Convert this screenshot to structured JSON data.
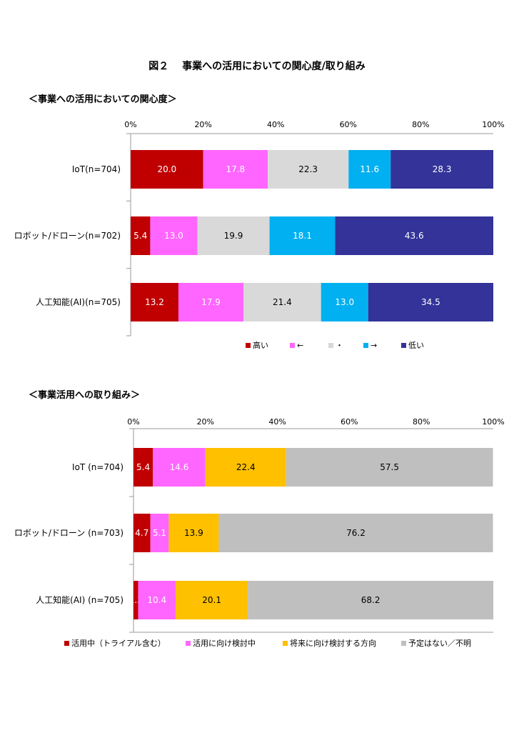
{
  "page": {
    "title": "図２　 事業への活用においての関心度/取り組み",
    "section1_heading": "＜事業への活用においての関心度＞",
    "section2_heading": "＜事業活用への取り組み＞"
  },
  "chart_data": [
    {
      "type": "bar",
      "orientation": "horizontal",
      "stacked": "100%",
      "categories": [
        "IoT(n=704)",
        "ロボット/ドローン(n=702)",
        "人工知能(AI)(n=705)"
      ],
      "x_ticks": [
        "0%",
        "20%",
        "40%",
        "60%",
        "80%",
        "100%"
      ],
      "xlim": [
        0,
        100
      ],
      "legend_position": "bottom",
      "series": [
        {
          "name": "高い",
          "color": "#c00000",
          "label_color": "#ffffff",
          "values": [
            20.0,
            5.4,
            13.2
          ]
        },
        {
          "name": "←",
          "color": "#ff66ff",
          "label_color": "#ffffff",
          "values": [
            17.8,
            13.0,
            17.9
          ]
        },
        {
          "name": "・",
          "color": "#d9d9d9",
          "label_color": "#000000",
          "values": [
            22.3,
            19.9,
            21.4
          ]
        },
        {
          "name": "→",
          "color": "#00b0f0",
          "label_color": "#ffffff",
          "values": [
            11.6,
            18.1,
            13.0
          ]
        },
        {
          "name": "低い",
          "color": "#333399",
          "label_color": "#ffffff",
          "values": [
            28.3,
            43.6,
            34.5
          ]
        }
      ]
    },
    {
      "type": "bar",
      "orientation": "horizontal",
      "stacked": "100%",
      "categories": [
        "IoT (n=704)",
        "ロボット/ドローン (n=703)",
        "人工知能(AI) (n=705)"
      ],
      "x_ticks": [
        "0%",
        "20%",
        "40%",
        "60%",
        "80%",
        "100%"
      ],
      "xlim": [
        0,
        100
      ],
      "legend_position": "bottom",
      "series": [
        {
          "name": "活用中（トライアル含む）",
          "color": "#c00000",
          "label_color": "#ffffff",
          "values": [
            5.4,
            4.7,
            1.3
          ]
        },
        {
          "name": "活用に向け検討中",
          "color": "#ff66ff",
          "label_color": "#ffffff",
          "values": [
            14.6,
            5.1,
            10.4
          ]
        },
        {
          "name": "将来に向け検討する方向",
          "color": "#ffc000",
          "label_color": "#000000",
          "values": [
            22.4,
            13.9,
            20.1
          ]
        },
        {
          "name": "予定はない／不明",
          "color": "#bfbfbf",
          "label_color": "#000000",
          "values": [
            57.5,
            76.2,
            68.2
          ]
        }
      ]
    }
  ]
}
